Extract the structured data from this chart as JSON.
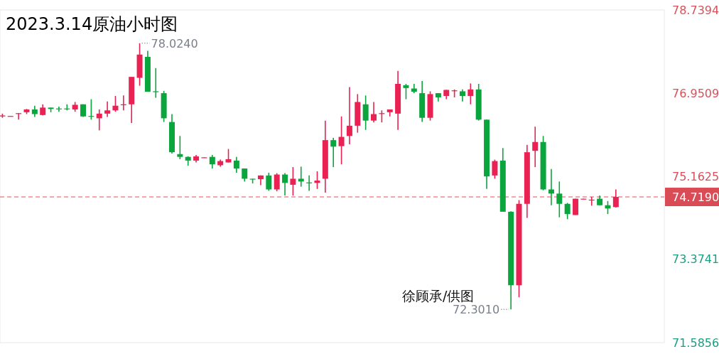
{
  "chart_data": {
    "type": "candlestick",
    "title": "2023.3.14原油小时图",
    "annotations": [
      "78.0240",
      "72.3010",
      "徐顾承/供图"
    ],
    "categories": [
      null,
      null,
      null,
      null,
      null,
      null,
      null,
      null,
      null,
      null,
      null,
      null,
      null,
      null,
      null,
      null,
      null,
      null,
      null,
      null,
      null,
      null,
      null,
      null,
      null,
      null,
      null,
      null,
      null,
      null,
      null,
      null,
      null,
      null,
      null,
      null,
      null,
      null,
      null,
      null,
      null,
      null,
      null,
      null,
      null,
      null,
      null,
      null,
      null,
      null,
      null,
      null,
      null,
      null,
      null,
      null,
      null,
      null,
      null,
      null,
      null,
      null,
      null,
      null,
      null,
      null,
      null,
      null,
      null,
      null,
      null,
      null,
      null,
      null,
      null,
      null,
      null
    ],
    "ohlc": [
      [
        76.45,
        76.51,
        76.42,
        76.47
      ],
      [
        76.45,
        76.46,
        76.45,
        76.46
      ],
      [
        76.51,
        76.52,
        76.38,
        76.52
      ],
      [
        76.54,
        76.61,
        76.5,
        76.6
      ],
      [
        76.6,
        76.68,
        76.44,
        76.5
      ],
      [
        76.48,
        76.71,
        76.47,
        76.64
      ],
      [
        76.64,
        76.64,
        76.54,
        76.61
      ],
      [
        76.62,
        76.66,
        76.55,
        76.61
      ],
      [
        76.62,
        76.71,
        76.58,
        76.61
      ],
      [
        76.6,
        76.76,
        76.55,
        76.7
      ],
      [
        76.71,
        76.71,
        76.44,
        76.45
      ],
      [
        76.46,
        76.82,
        76.38,
        76.45
      ],
      [
        76.41,
        76.6,
        76.15,
        76.51
      ],
      [
        76.51,
        76.77,
        76.44,
        76.58
      ],
      [
        76.58,
        76.89,
        76.55,
        76.68
      ],
      [
        76.7,
        76.9,
        76.58,
        76.71
      ],
      [
        76.71,
        77.3,
        76.31,
        77.3
      ],
      [
        77.28,
        78.024,
        77.11,
        77.78
      ],
      [
        77.73,
        77.86,
        76.98,
        76.98
      ],
      [
        76.99,
        77.49,
        76.85,
        76.98
      ],
      [
        76.95,
        77.0,
        76.33,
        76.41
      ],
      [
        76.33,
        76.5,
        75.65,
        75.68
      ],
      [
        75.64,
        76.03,
        75.53,
        75.58
      ],
      [
        75.58,
        75.59,
        75.39,
        75.5
      ],
      [
        75.5,
        75.62,
        75.46,
        75.59
      ],
      [
        75.56,
        75.57,
        75.56,
        75.57
      ],
      [
        75.58,
        75.62,
        75.33,
        75.42
      ],
      [
        75.4,
        75.52,
        75.37,
        75.49
      ],
      [
        75.46,
        75.75,
        75.46,
        75.53
      ],
      [
        75.5,
        75.58,
        75.24,
        75.33
      ],
      [
        75.33,
        75.33,
        75.05,
        75.11
      ],
      [
        75.11,
        75.11,
        75.01,
        75.1
      ],
      [
        75.1,
        75.18,
        74.97,
        75.18
      ],
      [
        75.18,
        75.24,
        74.85,
        74.88
      ],
      [
        74.88,
        75.23,
        74.84,
        75.2
      ],
      [
        75.2,
        75.23,
        74.75,
        75.02
      ],
      [
        74.98,
        75.36,
        74.75,
        75.11
      ],
      [
        75.11,
        75.37,
        74.94,
        75.05
      ],
      [
        75.03,
        75.18,
        74.85,
        75.02
      ],
      [
        75.02,
        75.27,
        74.89,
        75.07
      ],
      [
        75.11,
        76.36,
        74.81,
        75.94
      ],
      [
        75.94,
        75.99,
        75.36,
        75.8
      ],
      [
        75.81,
        76.45,
        75.42,
        76.01
      ],
      [
        76.03,
        77.08,
        75.85,
        76.25
      ],
      [
        76.25,
        76.93,
        76.1,
        76.76
      ],
      [
        76.71,
        76.9,
        76.16,
        76.36
      ],
      [
        76.36,
        76.76,
        76.32,
        76.5
      ],
      [
        76.51,
        76.58,
        76.32,
        76.52
      ],
      [
        76.54,
        76.6,
        76.45,
        76.6
      ],
      [
        76.51,
        77.43,
        76.16,
        77.15
      ],
      [
        77.12,
        77.15,
        76.82,
        77.06
      ],
      [
        77.05,
        77.15,
        76.95,
        76.98
      ],
      [
        76.95,
        77.21,
        76.33,
        76.42
      ],
      [
        76.42,
        76.99,
        76.36,
        76.93
      ],
      [
        76.95,
        76.95,
        76.77,
        76.86
      ],
      [
        76.89,
        77.02,
        76.82,
        77.02
      ],
      [
        77.0,
        77.03,
        76.86,
        77.01
      ],
      [
        76.99,
        77.03,
        76.77,
        76.89
      ],
      [
        76.89,
        77.16,
        76.71,
        77.03
      ],
      [
        77.03,
        77.15,
        76.36,
        76.38
      ],
      [
        76.38,
        76.38,
        74.89,
        75.16
      ],
      [
        75.18,
        75.52,
        75.11,
        75.49
      ],
      [
        75.5,
        75.77,
        74.4,
        74.4
      ],
      [
        74.4,
        74.41,
        72.301,
        72.82
      ],
      [
        72.82,
        74.65,
        72.56,
        74.57
      ],
      [
        74.57,
        75.84,
        74.27,
        75.68
      ],
      [
        75.71,
        76.23,
        75.36,
        75.9
      ],
      [
        75.9,
        76.03,
        74.86,
        74.88
      ],
      [
        74.88,
        75.32,
        74.54,
        74.79
      ],
      [
        74.79,
        75.05,
        74.28,
        74.57
      ],
      [
        74.57,
        74.59,
        74.24,
        74.35
      ],
      [
        74.33,
        74.68,
        74.33,
        74.68
      ],
      [
        74.67,
        74.68,
        74.67,
        74.68
      ],
      [
        74.65,
        74.72,
        74.53,
        74.66
      ],
      [
        74.68,
        74.75,
        74.54,
        74.54
      ],
      [
        74.54,
        74.63,
        74.35,
        74.47
      ],
      [
        74.5,
        74.88,
        74.49,
        74.719
      ]
    ],
    "colors": [
      "#ea2253",
      "#ea2253",
      "#ea2253",
      "#ea2253",
      "#0ba53d",
      "#ea2253",
      "#0ba53d",
      "#0ba53d",
      "#0ba53d",
      "#ea2253",
      "#0ba53d",
      "#0ba53d",
      "#ea2253",
      "#ea2253",
      "#ea2253",
      "#ea2253",
      "#ea2253",
      "#ea2253",
      "#0ba53d",
      "#0ba53d",
      "#0ba53d",
      "#0ba53d",
      "#0ba53d",
      "#0ba53d",
      "#ea2253",
      "#ea2253",
      "#0ba53d",
      "#ea2253",
      "#ea2253",
      "#0ba53d",
      "#0ba53d",
      "#0ba53d",
      "#ea2253",
      "#0ba53d",
      "#ea2253",
      "#0ba53d",
      "#ea2253",
      "#0ba53d",
      "#0ba53d",
      "#ea2253",
      "#ea2253",
      "#0ba53d",
      "#ea2253",
      "#ea2253",
      "#ea2253",
      "#0ba53d",
      "#ea2253",
      "#ea2253",
      "#ea2253",
      "#ea2253",
      "#0ba53d",
      "#0ba53d",
      "#0ba53d",
      "#ea2253",
      "#0ba53d",
      "#ea2253",
      "#ea2253",
      "#0ba53d",
      "#ea2253",
      "#0ba53d",
      "#0ba53d",
      "#ea2253",
      "#0ba53d",
      "#0ba53d",
      "#ea2253",
      "#ea2253",
      "#ea2253",
      "#0ba53d",
      "#0ba53d",
      "#0ba53d",
      "#0ba53d",
      "#ea2253",
      "#ea2253",
      "#ea2253",
      "#0ba53d",
      "#0ba53d",
      "#ea2253"
    ],
    "ylim": [
      71.5856,
      78.7394
    ],
    "yticks": [
      78.7394,
      76.9509,
      75.1625,
      73.3741,
      71.5856
    ],
    "tick_labels": "y",
    "ref_lines": [
      {
        "axis": "y",
        "value": 74.719,
        "label": "74.7190",
        "color": "#e0505a",
        "line_style": "dashed"
      }
    ]
  }
}
